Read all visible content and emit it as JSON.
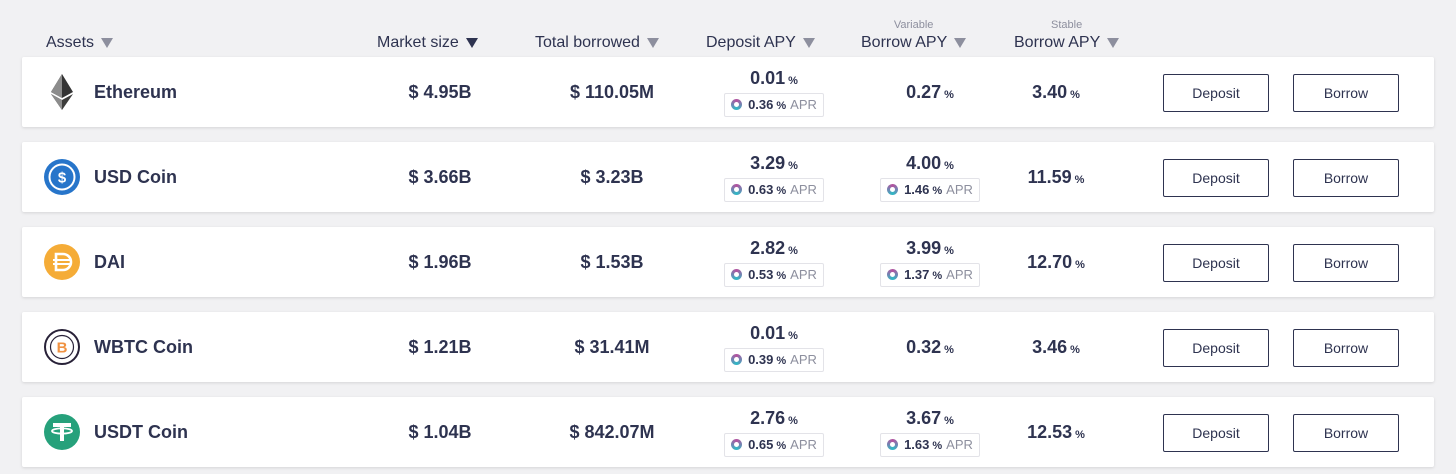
{
  "header": {
    "assets": "Assets",
    "market_size": "Market size",
    "total_borrowed": "Total borrowed",
    "deposit_apy": "Deposit APY",
    "variable_super": "Variable",
    "variable_borrow": "Borrow APY",
    "stable_super": "Stable",
    "stable_borrow": "Borrow APY"
  },
  "labels": {
    "deposit": "Deposit",
    "borrow": "Borrow",
    "apr": "APR",
    "pct": "%"
  },
  "rows": [
    {
      "name": "Ethereum",
      "icon": "ethereum-icon",
      "market": "$ 4.95B",
      "borrowed": "$ 110.05M",
      "deposit_apy": "0.01",
      "deposit_apr": "0.36",
      "variable_apy": "0.27",
      "variable_apr": "",
      "stable_apy": "3.40"
    },
    {
      "name": "USD Coin",
      "icon": "usdc-icon",
      "market": "$ 3.66B",
      "borrowed": "$ 3.23B",
      "deposit_apy": "3.29",
      "deposit_apr": "0.63",
      "variable_apy": "4.00",
      "variable_apr": "1.46",
      "stable_apy": "11.59"
    },
    {
      "name": "DAI",
      "icon": "dai-icon",
      "market": "$ 1.96B",
      "borrowed": "$ 1.53B",
      "deposit_apy": "2.82",
      "deposit_apr": "0.53",
      "variable_apy": "3.99",
      "variable_apr": "1.37",
      "stable_apy": "12.70"
    },
    {
      "name": "WBTC Coin",
      "icon": "wbtc-icon",
      "market": "$ 1.21B",
      "borrowed": "$ 31.41M",
      "deposit_apy": "0.01",
      "deposit_apr": "0.39",
      "variable_apy": "0.32",
      "variable_apr": "",
      "stable_apy": "3.46"
    },
    {
      "name": "USDT Coin",
      "icon": "usdt-icon",
      "market": "$ 1.04B",
      "borrowed": "$ 842.07M",
      "deposit_apy": "2.76",
      "deposit_apr": "0.65",
      "variable_apy": "3.67",
      "variable_apr": "1.63",
      "stable_apy": "12.53"
    }
  ],
  "colors": {
    "text": "#2e3350",
    "muted": "#8d8f9e",
    "background": "#f1f1f3",
    "usdc": "#2775ca",
    "dai": "#f5ac37",
    "wbtc_orange": "#f09242",
    "usdt": "#26a17b"
  }
}
